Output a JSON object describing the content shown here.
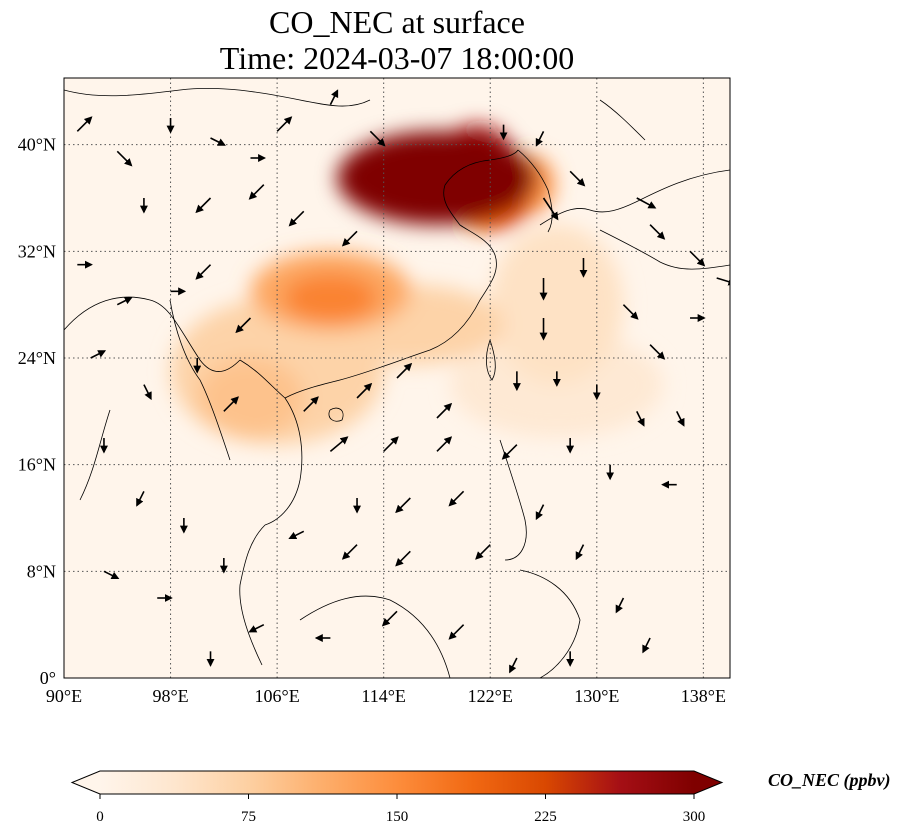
{
  "title": {
    "line1": "CO_NEC at surface",
    "line2": "Time: 2024-03-07 18:00:00"
  },
  "map": {
    "lon_range": [
      90,
      140
    ],
    "lat_range": [
      0,
      45
    ],
    "lon_ticks": [
      {
        "value": 90,
        "label": "90°E"
      },
      {
        "value": 98,
        "label": "98°E"
      },
      {
        "value": 106,
        "label": "106°E"
      },
      {
        "value": 114,
        "label": "114°E"
      },
      {
        "value": 122,
        "label": "122°E"
      },
      {
        "value": 130,
        "label": "130°E"
      },
      {
        "value": 138,
        "label": "138°E"
      }
    ],
    "lat_ticks": [
      {
        "value": 0,
        "label": "0°"
      },
      {
        "value": 8,
        "label": "8°N"
      },
      {
        "value": 16,
        "label": "16°N"
      },
      {
        "value": 24,
        "label": "24°N"
      },
      {
        "value": 32,
        "label": "32°N"
      },
      {
        "value": 40,
        "label": "40°N"
      }
    ],
    "gridlines": "dotted",
    "background_color": "#fff5eb",
    "concentration_field": [
      {
        "lon": 118,
        "lat": 37.5,
        "rlon": 7.5,
        "rlat": 3.5,
        "value": 300
      },
      {
        "lon": 117,
        "lat": 37,
        "rlon": 4.5,
        "rlat": 2.5,
        "value": 300
      },
      {
        "lon": 121,
        "lat": 39.5,
        "rlon": 2.5,
        "rlat": 2,
        "value": 260
      },
      {
        "lon": 122,
        "lat": 35.5,
        "rlon": 3,
        "rlat": 2,
        "value": 210
      },
      {
        "lon": 125,
        "lat": 37,
        "rlon": 1.8,
        "rlat": 2.2,
        "value": 150
      },
      {
        "lon": 110,
        "lat": 29,
        "rlon": 6,
        "rlat": 3,
        "value": 120
      },
      {
        "lon": 110,
        "lat": 28.5,
        "rlon": 3.5,
        "rlat": 1.8,
        "value": 160
      },
      {
        "lon": 116,
        "lat": 26.5,
        "rlon": 7,
        "rlat": 3,
        "value": 70
      },
      {
        "lon": 106,
        "lat": 23,
        "rlon": 8,
        "rlat": 5.5,
        "value": 70
      },
      {
        "lon": 104,
        "lat": 21,
        "rlon": 4,
        "rlat": 3,
        "value": 90
      },
      {
        "lon": 127,
        "lat": 28,
        "rlon": 5,
        "rlat": 6,
        "value": 45
      },
      {
        "lon": 127,
        "lat": 22,
        "rlon": 8,
        "rlat": 4,
        "value": 30
      }
    ],
    "wind_vectors": [
      {
        "lon": 91,
        "lat": 41,
        "u": 1,
        "v": 1
      },
      {
        "lon": 94,
        "lat": 39.5,
        "u": 1,
        "v": -1
      },
      {
        "lon": 98,
        "lat": 42,
        "u": 0,
        "v": -1
      },
      {
        "lon": 101,
        "lat": 40.5,
        "u": 1,
        "v": -0.5
      },
      {
        "lon": 104,
        "lat": 39,
        "u": 1,
        "v": 0
      },
      {
        "lon": 106,
        "lat": 41,
        "u": 1,
        "v": 1
      },
      {
        "lon": 110,
        "lat": 43,
        "u": 0.5,
        "v": 1
      },
      {
        "lon": 113,
        "lat": 41,
        "u": 1,
        "v": -1
      },
      {
        "lon": 96,
        "lat": 36,
        "u": 0,
        "v": -1
      },
      {
        "lon": 101,
        "lat": 36,
        "u": -1,
        "v": -1
      },
      {
        "lon": 105,
        "lat": 37,
        "u": -1,
        "v": -1
      },
      {
        "lon": 108,
        "lat": 35,
        "u": -1,
        "v": -1
      },
      {
        "lon": 112,
        "lat": 33.5,
        "u": -1,
        "v": -1
      },
      {
        "lon": 91,
        "lat": 31,
        "u": 1,
        "v": 0
      },
      {
        "lon": 94,
        "lat": 28,
        "u": 1,
        "v": 0.5
      },
      {
        "lon": 98,
        "lat": 29,
        "u": 1,
        "v": 0
      },
      {
        "lon": 101,
        "lat": 31,
        "u": -1,
        "v": -1
      },
      {
        "lon": 104,
        "lat": 27,
        "u": -1,
        "v": -1
      },
      {
        "lon": 92,
        "lat": 24,
        "u": 1,
        "v": 0.5
      },
      {
        "lon": 96,
        "lat": 22,
        "u": 0.5,
        "v": -1
      },
      {
        "lon": 100,
        "lat": 24,
        "u": 0,
        "v": -1
      },
      {
        "lon": 102,
        "lat": 20,
        "u": 1,
        "v": 1
      },
      {
        "lon": 108,
        "lat": 20,
        "u": 1,
        "v": 1
      },
      {
        "lon": 112,
        "lat": 21,
        "u": 1,
        "v": 1
      },
      {
        "lon": 115,
        "lat": 22.5,
        "u": 1,
        "v": 1
      },
      {
        "lon": 118,
        "lat": 19.5,
        "u": 1,
        "v": 1
      },
      {
        "lon": 110,
        "lat": 17,
        "u": 1.2,
        "v": 1
      },
      {
        "lon": 114,
        "lat": 17,
        "u": 1,
        "v": 1
      },
      {
        "lon": 118,
        "lat": 17,
        "u": 1,
        "v": 1
      },
      {
        "lon": 112,
        "lat": 13.5,
        "u": 0,
        "v": -1
      },
      {
        "lon": 116,
        "lat": 13.5,
        "u": -1,
        "v": -1
      },
      {
        "lon": 120,
        "lat": 14,
        "u": -1,
        "v": -1
      },
      {
        "lon": 108,
        "lat": 11,
        "u": -1,
        "v": -0.5
      },
      {
        "lon": 112,
        "lat": 10,
        "u": -1,
        "v": -1
      },
      {
        "lon": 116,
        "lat": 9.5,
        "u": -1,
        "v": -1
      },
      {
        "lon": 122,
        "lat": 10,
        "u": -1,
        "v": -1
      },
      {
        "lon": 99,
        "lat": 12,
        "u": 0,
        "v": -1
      },
      {
        "lon": 102,
        "lat": 9,
        "u": 0,
        "v": -1
      },
      {
        "lon": 105,
        "lat": 4,
        "u": -1,
        "v": -0.5
      },
      {
        "lon": 110,
        "lat": 3,
        "u": -1,
        "v": 0
      },
      {
        "lon": 115,
        "lat": 5,
        "u": -1,
        "v": -1
      },
      {
        "lon": 120,
        "lat": 4,
        "u": -1,
        "v": -1
      },
      {
        "lon": 123,
        "lat": 41.5,
        "u": 0,
        "v": -1
      },
      {
        "lon": 126,
        "lat": 41,
        "u": -0.5,
        "v": -1
      },
      {
        "lon": 126,
        "lat": 36,
        "u": 1,
        "v": -1.5
      },
      {
        "lon": 128,
        "lat": 38,
        "u": 1,
        "v": -1
      },
      {
        "lon": 133,
        "lat": 36,
        "u": 1.3,
        "v": -0.7
      },
      {
        "lon": 134,
        "lat": 34,
        "u": 1,
        "v": -1
      },
      {
        "lon": 137,
        "lat": 32,
        "u": 1,
        "v": -1
      },
      {
        "lon": 139,
        "lat": 30,
        "u": 1.3,
        "v": -0.4
      },
      {
        "lon": 126,
        "lat": 30,
        "u": 0,
        "v": -1.5
      },
      {
        "lon": 126,
        "lat": 27,
        "u": 0,
        "v": -1.5
      },
      {
        "lon": 129,
        "lat": 31.5,
        "u": 0,
        "v": -1.3
      },
      {
        "lon": 132,
        "lat": 28,
        "u": 1,
        "v": -1
      },
      {
        "lon": 134,
        "lat": 25,
        "u": 1,
        "v": -1
      },
      {
        "lon": 137,
        "lat": 27,
        "u": 1,
        "v": 0
      },
      {
        "lon": 124,
        "lat": 23,
        "u": 0,
        "v": -1.3
      },
      {
        "lon": 127,
        "lat": 23,
        "u": 0,
        "v": -1
      },
      {
        "lon": 130,
        "lat": 22,
        "u": 0,
        "v": -1
      },
      {
        "lon": 133,
        "lat": 20,
        "u": 0.5,
        "v": -1
      },
      {
        "lon": 136,
        "lat": 20,
        "u": 0.5,
        "v": -1
      },
      {
        "lon": 124,
        "lat": 17.5,
        "u": -1,
        "v": -1
      },
      {
        "lon": 128,
        "lat": 18,
        "u": 0,
        "v": -1
      },
      {
        "lon": 131,
        "lat": 16,
        "u": 0,
        "v": -1
      },
      {
        "lon": 136,
        "lat": 14.5,
        "u": -1,
        "v": 0
      },
      {
        "lon": 126,
        "lat": 13,
        "u": -0.5,
        "v": -1
      },
      {
        "lon": 129,
        "lat": 10,
        "u": -0.5,
        "v": -1
      },
      {
        "lon": 132,
        "lat": 6,
        "u": -0.5,
        "v": -1
      },
      {
        "lon": 134,
        "lat": 3,
        "u": -0.5,
        "v": -1
      },
      {
        "lon": 93,
        "lat": 18,
        "u": 0,
        "v": -1
      },
      {
        "lon": 96,
        "lat": 14,
        "u": -0.5,
        "v": -1
      },
      {
        "lon": 93,
        "lat": 8,
        "u": 1,
        "v": -0.5
      },
      {
        "lon": 97,
        "lat": 6,
        "u": 1,
        "v": 0
      },
      {
        "lon": 101,
        "lat": 2,
        "u": 0,
        "v": -1
      },
      {
        "lon": 128,
        "lat": 2,
        "u": 0,
        "v": -1
      },
      {
        "lon": 124,
        "lat": 1.5,
        "u": -0.5,
        "v": -1
      }
    ]
  },
  "colorbar": {
    "min": 0,
    "max": 300,
    "ticks": [
      {
        "value": 0,
        "label": "0"
      },
      {
        "value": 75,
        "label": "75"
      },
      {
        "value": 150,
        "label": "150"
      },
      {
        "value": 225,
        "label": "225"
      },
      {
        "value": 300,
        "label": "300"
      }
    ],
    "label": "CO_NEC (ppbv)",
    "colormap": [
      "#fff5eb",
      "#fee6ce",
      "#fdd0a2",
      "#fdae6b",
      "#fd8d3c",
      "#f16913",
      "#d94801",
      "#a50f15",
      "#7f0000"
    ]
  }
}
